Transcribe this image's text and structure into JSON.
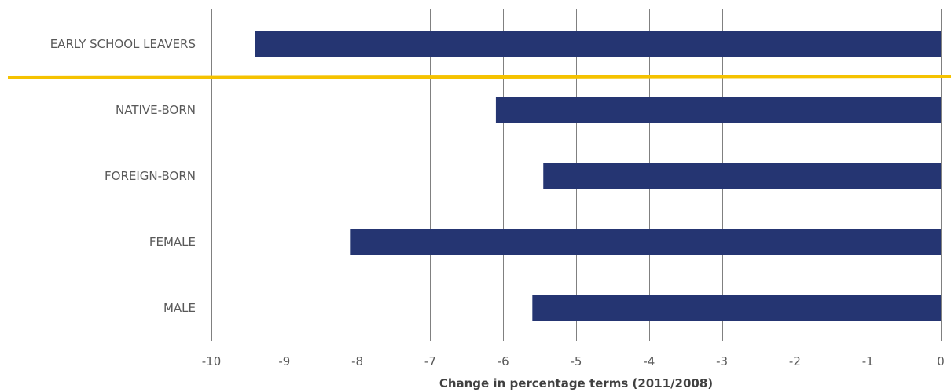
{
  "chart_data": {
    "type": "bar",
    "orientation": "horizontal",
    "categories": [
      "EARLY SCHOOL LEAVERS",
      "NATIVE-BORN",
      "FOREIGN-BORN",
      "FEMALE",
      "MALE"
    ],
    "values": [
      -9.4,
      -6.1,
      -5.45,
      -8.1,
      -5.6
    ],
    "xlabel": "Change in percentage terms (2011/2008)",
    "xlim": [
      -10,
      0
    ],
    "x_ticks": [
      "-10",
      "-9",
      "-8",
      "-7",
      "-6",
      "-5",
      "-4",
      "-3",
      "-2",
      "-1",
      "0"
    ],
    "grid": "vertical",
    "colors": {
      "bar": "#253572",
      "separator": "#f5c200",
      "grid": "#808080"
    }
  }
}
